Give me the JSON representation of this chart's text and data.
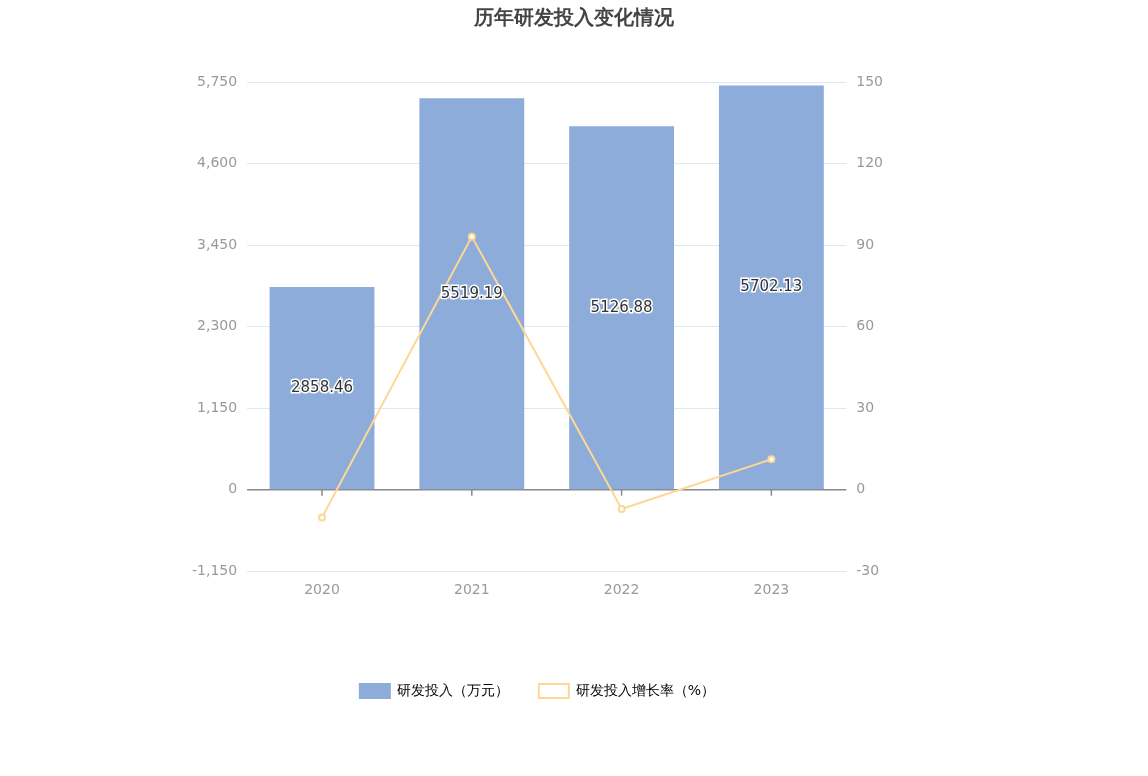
{
  "chart_data": {
    "type": "bar",
    "title": "历年研发投入变化情况",
    "categories": [
      "2020",
      "2021",
      "2022",
      "2023"
    ],
    "series": [
      {
        "name": "研发投入（万元）",
        "color": "#8eacd9",
        "values": [
          2858.46,
          5519.19,
          5126.88,
          5702.13
        ],
        "value_labels": [
          "2858.46",
          "5519.19",
          "5126.88",
          "5702.13"
        ]
      },
      {
        "name": "研发投入增长率（%）",
        "type": "line",
        "axis": "y2",
        "color": "#fdd794",
        "values": [
          -10.2,
          93.1,
          -7.1,
          11.2
        ],
        "marker": "circle"
      }
    ],
    "ylim": [
      -1150,
      5750
    ],
    "yticks": [
      {
        "value": -1150,
        "label": "-1,150"
      },
      0,
      {
        "value": 1150,
        "label": "1,150"
      },
      {
        "value": 2300,
        "label": "2,300"
      },
      {
        "value": 3450,
        "label": "3,450"
      },
      {
        "value": 4600,
        "label": "4,600"
      },
      {
        "value": 5750,
        "label": "5,750"
      }
    ],
    "y2lim": [
      -30,
      150
    ],
    "y2ticks": [
      -30,
      0,
      30,
      60,
      90,
      120,
      150
    ],
    "grid": "y",
    "legend": "bottom"
  }
}
